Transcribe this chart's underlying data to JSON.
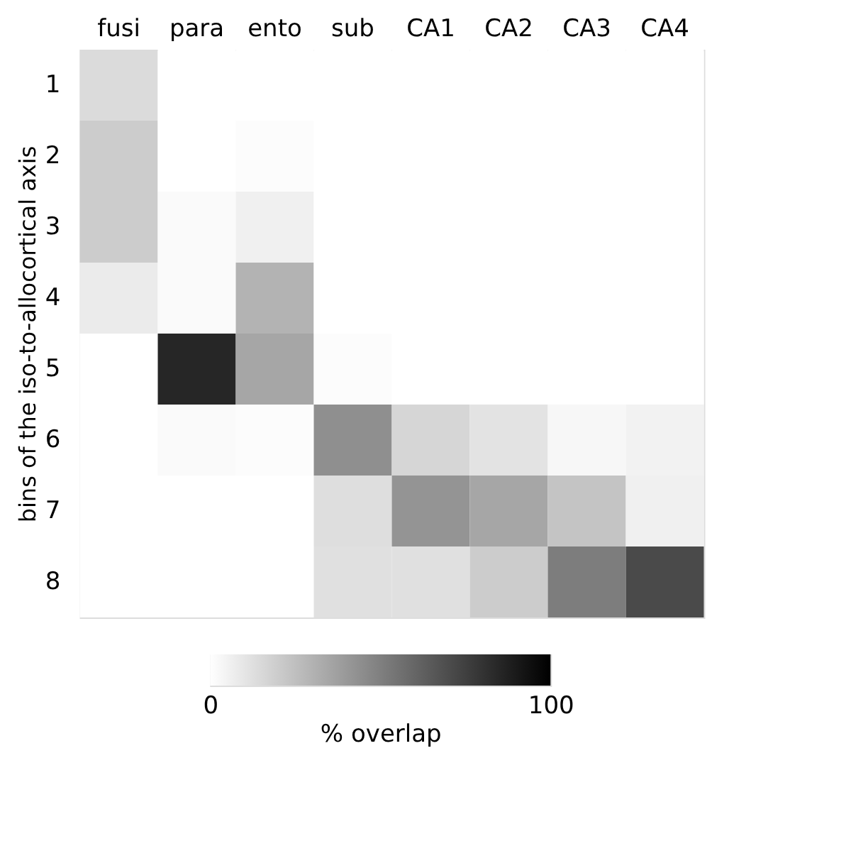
{
  "chart_data": {
    "type": "heatmap",
    "ylabel": "bins of the iso-to-allocortical axis",
    "clabel": "% overlap",
    "categories": [
      "fusi",
      "para",
      "ento",
      "sub",
      "CA1",
      "CA2",
      "CA3",
      "CA4"
    ],
    "y_categories": [
      "1",
      "2",
      "3",
      "4",
      "5",
      "6",
      "7",
      "8"
    ],
    "cells": [
      [
        14,
        0,
        0,
        0,
        0,
        0,
        0,
        0
      ],
      [
        20,
        0,
        1,
        0,
        0,
        0,
        0,
        0
      ],
      [
        20,
        2,
        6,
        0,
        0,
        0,
        0,
        0
      ],
      [
        8,
        2,
        30,
        0,
        0,
        0,
        0,
        0
      ],
      [
        0,
        85,
        35,
        1,
        0,
        0,
        0,
        0
      ],
      [
        0,
        2,
        1,
        44,
        16,
        11,
        3,
        5
      ],
      [
        0,
        0,
        0,
        13,
        42,
        35,
        23,
        6
      ],
      [
        0,
        0,
        0,
        12,
        12,
        20,
        51,
        71
      ]
    ],
    "clim": [
      0,
      100
    ],
    "cticks": [
      0,
      100
    ],
    "grid": false
  }
}
